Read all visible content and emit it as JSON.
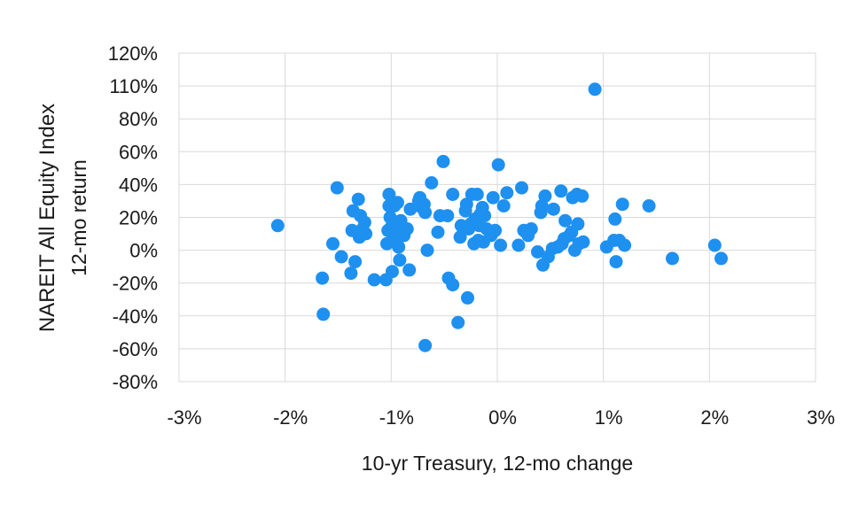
{
  "chart_data": {
    "type": "scatter",
    "xlabel": "10-yr Treasury, 12-mo change",
    "ylabel": "NAREIT All Equity Index",
    "ylabel_sub": "12-mo return",
    "xlim": [
      -3,
      3
    ],
    "ylim": [
      -80,
      120
    ],
    "x_ticks": [
      -3,
      -2,
      -1,
      0,
      1,
      2,
      3
    ],
    "y_ticks": [
      -80,
      -60,
      -40,
      -20,
      0,
      20,
      40,
      60,
      80,
      110,
      120
    ],
    "x_tick_labels": [
      "-3%",
      "-2%",
      "-1%",
      "0%",
      "1%",
      "2%",
      "3%"
    ],
    "y_tick_labels": [
      "-80%",
      "-60%",
      "-40%",
      "-20%",
      "0%",
      "20%",
      "40%",
      "60%",
      "80%",
      "110%",
      "120%"
    ],
    "grid": true,
    "marker_color": "#1e90f0",
    "points": [
      {
        "x": -2.07,
        "y": 15
      },
      {
        "x": -1.65,
        "y": -17
      },
      {
        "x": -1.64,
        "y": -39
      },
      {
        "x": -1.55,
        "y": 4
      },
      {
        "x": -1.51,
        "y": 38
      },
      {
        "x": -1.47,
        "y": -4
      },
      {
        "x": -1.38,
        "y": -14
      },
      {
        "x": -1.37,
        "y": 12
      },
      {
        "x": -1.36,
        "y": 24
      },
      {
        "x": -1.34,
        "y": -7
      },
      {
        "x": -1.31,
        "y": 31
      },
      {
        "x": -1.3,
        "y": 8
      },
      {
        "x": -1.29,
        "y": 21
      },
      {
        "x": -1.27,
        "y": 13
      },
      {
        "x": -1.25,
        "y": 17
      },
      {
        "x": -1.24,
        "y": 10
      },
      {
        "x": -1.16,
        "y": -18
      },
      {
        "x": -1.05,
        "y": -18
      },
      {
        "x": -1.04,
        "y": 4
      },
      {
        "x": -1.03,
        "y": 12
      },
      {
        "x": -1.02,
        "y": 34
      },
      {
        "x": -1.02,
        "y": 27
      },
      {
        "x": -1.01,
        "y": 20
      },
      {
        "x": -1.0,
        "y": 14
      },
      {
        "x": -0.99,
        "y": -13
      },
      {
        "x": -0.98,
        "y": 7
      },
      {
        "x": -0.97,
        "y": 27
      },
      {
        "x": -0.96,
        "y": 17
      },
      {
        "x": -0.95,
        "y": 11
      },
      {
        "x": -0.94,
        "y": 29
      },
      {
        "x": -0.93,
        "y": 2
      },
      {
        "x": -0.92,
        "y": -6
      },
      {
        "x": -0.91,
        "y": 18
      },
      {
        "x": -0.88,
        "y": 9
      },
      {
        "x": -0.85,
        "y": 13
      },
      {
        "x": -0.83,
        "y": -12
      },
      {
        "x": -0.82,
        "y": 25
      },
      {
        "x": -0.74,
        "y": 30
      },
      {
        "x": -0.73,
        "y": 32
      },
      {
        "x": -0.71,
        "y": 26
      },
      {
        "x": -0.69,
        "y": 28
      },
      {
        "x": -0.68,
        "y": 23
      },
      {
        "x": -0.68,
        "y": -58
      },
      {
        "x": -0.66,
        "y": 0
      },
      {
        "x": -0.62,
        "y": 41
      },
      {
        "x": -0.56,
        "y": 11
      },
      {
        "x": -0.54,
        "y": 21
      },
      {
        "x": -0.51,
        "y": 54
      },
      {
        "x": -0.47,
        "y": 21
      },
      {
        "x": -0.46,
        "y": -17
      },
      {
        "x": -0.42,
        "y": -21
      },
      {
        "x": -0.42,
        "y": 34
      },
      {
        "x": -0.37,
        "y": -44
      },
      {
        "x": -0.35,
        "y": 8
      },
      {
        "x": -0.34,
        "y": 15
      },
      {
        "x": -0.3,
        "y": 24
      },
      {
        "x": -0.29,
        "y": 28
      },
      {
        "x": -0.28,
        "y": -29
      },
      {
        "x": -0.27,
        "y": 13
      },
      {
        "x": -0.25,
        "y": 16
      },
      {
        "x": -0.24,
        "y": 34
      },
      {
        "x": -0.22,
        "y": 4
      },
      {
        "x": -0.21,
        "y": 19
      },
      {
        "x": -0.19,
        "y": 34
      },
      {
        "x": -0.18,
        "y": 6
      },
      {
        "x": -0.17,
        "y": 15
      },
      {
        "x": -0.16,
        "y": 22
      },
      {
        "x": -0.14,
        "y": 26
      },
      {
        "x": -0.13,
        "y": 5
      },
      {
        "x": -0.12,
        "y": 21
      },
      {
        "x": -0.1,
        "y": 13
      },
      {
        "x": -0.06,
        "y": 9
      },
      {
        "x": -0.04,
        "y": 32
      },
      {
        "x": -0.02,
        "y": 12
      },
      {
        "x": 0.01,
        "y": 52
      },
      {
        "x": 0.03,
        "y": 3
      },
      {
        "x": 0.06,
        "y": 27
      },
      {
        "x": 0.09,
        "y": 35
      },
      {
        "x": 0.2,
        "y": 3
      },
      {
        "x": 0.23,
        "y": 38
      },
      {
        "x": 0.25,
        "y": 12
      },
      {
        "x": 0.29,
        "y": 9
      },
      {
        "x": 0.32,
        "y": 13
      },
      {
        "x": 0.38,
        "y": -1
      },
      {
        "x": 0.41,
        "y": 23
      },
      {
        "x": 0.42,
        "y": 27
      },
      {
        "x": 0.43,
        "y": -9
      },
      {
        "x": 0.45,
        "y": 33
      },
      {
        "x": 0.48,
        "y": -4
      },
      {
        "x": 0.52,
        "y": 1
      },
      {
        "x": 0.53,
        "y": 25
      },
      {
        "x": 0.57,
        "y": 2
      },
      {
        "x": 0.6,
        "y": 36
      },
      {
        "x": 0.61,
        "y": 4
      },
      {
        "x": 0.63,
        "y": 7
      },
      {
        "x": 0.64,
        "y": 18
      },
      {
        "x": 0.68,
        "y": 9
      },
      {
        "x": 0.7,
        "y": 11
      },
      {
        "x": 0.71,
        "y": 32
      },
      {
        "x": 0.73,
        "y": 0
      },
      {
        "x": 0.75,
        "y": 34
      },
      {
        "x": 0.76,
        "y": 16
      },
      {
        "x": 0.77,
        "y": 4
      },
      {
        "x": 0.8,
        "y": 33
      },
      {
        "x": 0.81,
        "y": 5
      },
      {
        "x": 0.92,
        "y": 107
      },
      {
        "x": 1.03,
        "y": 2
      },
      {
        "x": 1.1,
        "y": 6
      },
      {
        "x": 1.11,
        "y": 19
      },
      {
        "x": 1.12,
        "y": -7
      },
      {
        "x": 1.15,
        "y": 6
      },
      {
        "x": 1.18,
        "y": 28
      },
      {
        "x": 1.2,
        "y": 3
      },
      {
        "x": 1.43,
        "y": 27
      },
      {
        "x": 1.65,
        "y": -5
      },
      {
        "x": 2.05,
        "y": 3
      },
      {
        "x": 2.11,
        "y": -5
      }
    ]
  }
}
